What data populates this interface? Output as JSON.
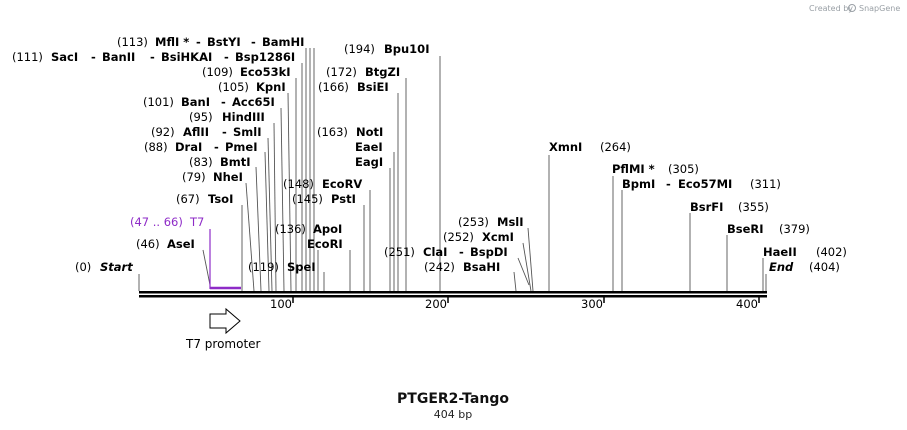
{
  "credit": {
    "prefix": "Created by",
    "brand": "SnapGene"
  },
  "title": "PTGER2-Tango",
  "subtitle": "404 bp",
  "scale": {
    "total_bp": 404,
    "ticks": [
      100,
      200,
      300,
      400
    ]
  },
  "feature": {
    "name": "T7 promoter",
    "start": 47,
    "end": 66
  },
  "primer": {
    "label_range": "(47 .. 66)",
    "label_name": "T7"
  },
  "sites": [
    {
      "row": "start",
      "pos": "(0)",
      "name": "Start"
    },
    {
      "row": "end",
      "pos": "(404)",
      "name": "End"
    },
    {
      "row": "asei",
      "pos": "(46)",
      "name": "AseI"
    },
    {
      "row": "tsoi",
      "pos": "(67)",
      "name": "TsoI"
    },
    {
      "row": "nhei",
      "pos": "(79)",
      "name": "NheI"
    },
    {
      "row": "bmti",
      "pos": "(83)",
      "name": "BmtI"
    },
    {
      "row": "drai",
      "pos": "(88)",
      "name": "DraI",
      "also": "PmeI"
    },
    {
      "row": "aflii",
      "pos": "(92)",
      "name": "AflII",
      "also": "SmlI"
    },
    {
      "row": "hindiii",
      "pos": "(95)",
      "name": "HindIII"
    },
    {
      "row": "bani",
      "pos": "(101)",
      "name": "BanI",
      "also": "Acc65I"
    },
    {
      "row": "kpni",
      "pos": "(105)",
      "name": "KpnI"
    },
    {
      "row": "eco53ki",
      "pos": "(109)",
      "name": "Eco53kI"
    },
    {
      "row": "saci",
      "pos": "(111)",
      "name": "SacI",
      "also": "BanII",
      "also2": "BsiHKAI",
      "also3": "Bsp1286I"
    },
    {
      "row": "mfli",
      "pos": "(113)",
      "name": "MflI *",
      "also": "BstYI",
      "also2": "BamHI"
    },
    {
      "row": "spei",
      "pos": "(119)",
      "name": "SpeI"
    },
    {
      "row": "ecori",
      "pos": "",
      "name": "EcoRI"
    },
    {
      "row": "apoi",
      "pos": "(136)",
      "name": "ApoI"
    },
    {
      "row": "psti",
      "pos": "(145)",
      "name": "PstI"
    },
    {
      "row": "ecorv",
      "pos": "(148)",
      "name": "EcoRV"
    },
    {
      "row": "eagi",
      "pos": "",
      "name": "EagI"
    },
    {
      "row": "eaei",
      "pos": "",
      "name": "EaeI"
    },
    {
      "row": "noti",
      "pos": "(163)",
      "name": "NotI"
    },
    {
      "row": "bsiei",
      "pos": "(166)",
      "name": "BsiEI"
    },
    {
      "row": "btgzi",
      "pos": "(172)",
      "name": "BtgZI"
    },
    {
      "row": "bpu10i",
      "pos": "(194)",
      "name": "Bpu10I"
    },
    {
      "row": "bsahi",
      "pos": "(242)",
      "name": "BsaHI"
    },
    {
      "row": "clai",
      "pos": "(251)",
      "name": "ClaI",
      "also": "BspDI"
    },
    {
      "row": "xcmi",
      "pos": "(252)",
      "name": "XcmI"
    },
    {
      "row": "msli",
      "pos": "(253)",
      "name": "MslI"
    },
    {
      "row": "xmni",
      "pos": "(264)",
      "name": "XmnI"
    },
    {
      "row": "bpmi",
      "pos": "(311)",
      "name": "BpmI",
      "also": "Eco57MI"
    },
    {
      "row": "pflmi",
      "pos": "(305)",
      "name": "PflMI *"
    },
    {
      "row": "bsrfi",
      "pos": "(355)",
      "name": "BsrFI"
    },
    {
      "row": "bseri",
      "pos": "(379)",
      "name": "BseRI"
    },
    {
      "row": "haeii",
      "pos": "(402)",
      "name": "HaeII"
    }
  ]
}
